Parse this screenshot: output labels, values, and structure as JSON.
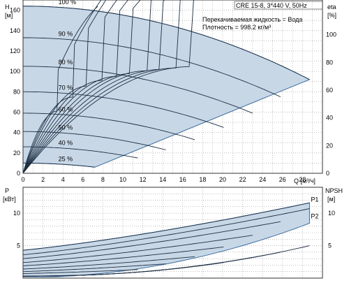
{
  "info": {
    "model": "CRE 15-8, 3*440 V, 50Hz",
    "liquid": "Перекачиваемая жидкость = Вода",
    "density": "Плотность = 998.2 кг/м³"
  },
  "labels": {
    "top_ylabel": "H",
    "top_yunit": "[м]",
    "right_top_label": "eta",
    "right_top_unit": "[%]",
    "xlabel": "Q [м³/ч]",
    "bottom_ylabel": "P",
    "bottom_yunit": "[кВт]",
    "bottom_right_label": "NPSH",
    "bottom_right_unit": "[м]"
  },
  "chart_data": [
    {
      "type": "line",
      "title": "",
      "xlabel": "Q [м³/ч]",
      "ylabel": "H [м]",
      "y2label": "eta [%]",
      "xlim": [
        0,
        30
      ],
      "ylim": [
        0,
        170
      ],
      "y2lim": [
        0,
        125
      ],
      "x_ticks": [
        0,
        2,
        4,
        6,
        8,
        10,
        12,
        14,
        16,
        18,
        20,
        22,
        24,
        26,
        28
      ],
      "y_ticks": [
        0,
        20,
        40,
        60,
        80,
        100,
        120,
        140,
        160
      ],
      "y2_ticks": [
        0,
        20,
        40,
        60,
        80,
        100
      ],
      "grid": true,
      "speed_curves": [
        {
          "name": "100 %",
          "shutoff_head": 164,
          "end_q": 28.7,
          "end_head": 92
        },
        {
          "name": "90 %",
          "shutoff_head": 133,
          "end_q": 25.8,
          "end_head": 75
        },
        {
          "name": "80 %",
          "shutoff_head": 105,
          "end_q": 23.0,
          "end_head": 59
        },
        {
          "name": "70 %",
          "shutoff_head": 80,
          "end_q": 20.1,
          "end_head": 45
        },
        {
          "name": "60 %",
          "shutoff_head": 59,
          "end_q": 17.2,
          "end_head": 33
        },
        {
          "name": "50 %",
          "shutoff_head": 41,
          "end_q": 14.3,
          "end_head": 23
        },
        {
          "name": "40 %",
          "shutoff_head": 26,
          "end_q": 11.5,
          "end_head": 15
        },
        {
          "name": "25 %",
          "shutoff_head": 10,
          "end_q": 7.2,
          "end_head": 6
        }
      ],
      "efficiency_curves": [
        {
          "peak_q": 17.0,
          "peak_eta": 77,
          "end_q": 28.5
        },
        {
          "peak_q": 15.5,
          "peak_eta": 76,
          "end_q": 27.0
        },
        {
          "peak_q": 14.0,
          "peak_eta": 75,
          "end_q": 25.5
        },
        {
          "peak_q": 12.5,
          "peak_eta": 74,
          "end_q": 24.0
        },
        {
          "peak_q": 11.0,
          "peak_eta": 72,
          "end_q": 22.0
        },
        {
          "peak_q": 9.5,
          "peak_eta": 70,
          "end_q": 20.0
        },
        {
          "peak_q": 8.0,
          "peak_eta": 67,
          "end_q": 17.5
        },
        {
          "peak_q": 6.5,
          "peak_eta": 63,
          "end_q": 14.5
        },
        {
          "peak_q": 5.0,
          "peak_eta": 55,
          "end_q": 11.0
        },
        {
          "peak_q": 3.5,
          "peak_eta": 45,
          "end_q": 7.5
        }
      ]
    },
    {
      "type": "line",
      "title": "",
      "xlabel": "Q [м³/ч]",
      "ylabel": "P [кВт]",
      "y2label": "NPSH [м]",
      "xlim": [
        0,
        30
      ],
      "ylim": [
        0,
        14
      ],
      "y2lim": [
        0,
        14
      ],
      "y_ticks": [
        5,
        10
      ],
      "y2_ticks": [
        5,
        10
      ],
      "grid": true,
      "series": [
        {
          "name": "P1",
          "start": 4.3,
          "end_q": 28.7,
          "end_value": 11.6
        },
        {
          "name": "P2",
          "start": 3.6,
          "end_q": 28.7,
          "end_value": 10.7
        }
      ],
      "speed_power_curves": [
        {
          "start": 3.0,
          "end_q": 25.8,
          "end_value": 8.7
        },
        {
          "start": 2.4,
          "end_q": 23.0,
          "end_value": 6.6
        },
        {
          "start": 1.9,
          "end_q": 20.1,
          "end_value": 4.8
        },
        {
          "start": 1.4,
          "end_q": 17.2,
          "end_value": 3.3
        },
        {
          "start": 1.0,
          "end_q": 14.3,
          "end_value": 2.2
        },
        {
          "start": 0.7,
          "end_q": 11.5,
          "end_value": 1.3
        },
        {
          "start": 0.3,
          "end_q": 7.2,
          "end_value": 0.5
        }
      ],
      "npsh_curves": [
        {
          "start": 0.3,
          "end_q": 28.7,
          "end_value": 5.0
        },
        {
          "start": 0.3,
          "end_q": 25.8,
          "end_value": 4.0
        },
        {
          "start": 0.3,
          "end_q": 23.0,
          "end_value": 3.2
        },
        {
          "start": 0.3,
          "end_q": 20.1,
          "end_value": 2.4
        }
      ]
    }
  ]
}
